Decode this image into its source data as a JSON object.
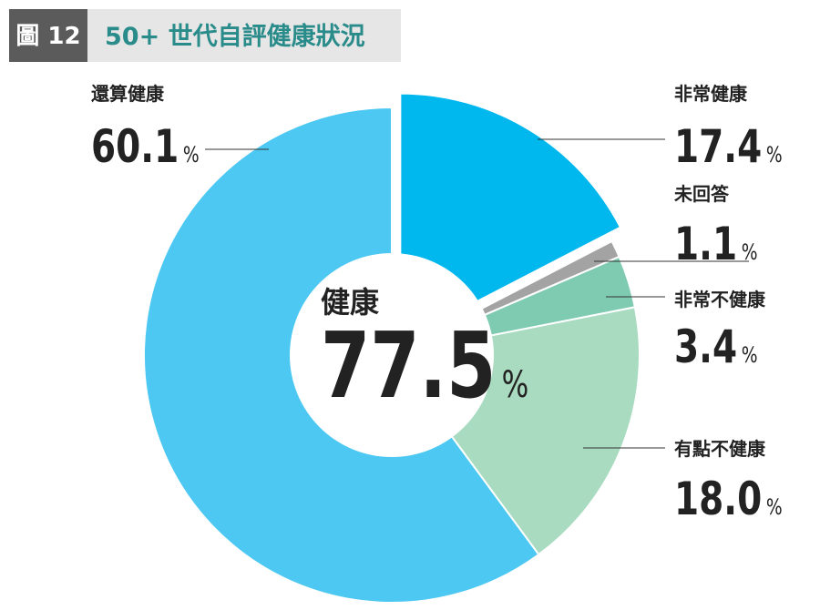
{
  "chart_data": {
    "type": "donut",
    "figure_label": "圖 12",
    "title": "50+ 世代自評健康狀況",
    "categories": [
      "非常健康",
      "未回答",
      "非常不健康",
      "有點不健康",
      "還算健康"
    ],
    "values": [
      17.4,
      1.1,
      3.4,
      18.0,
      60.1
    ],
    "value_labels": [
      "17.4",
      "1.1",
      "3.4",
      "18.0",
      "60.1"
    ],
    "unit": "%",
    "colors": [
      "#00b7ee",
      "#a3a3a3",
      "#7ecbb1",
      "#a9dbc1",
      "#4cc8f2"
    ],
    "exploded": [
      true,
      false,
      false,
      false,
      false
    ],
    "center_label": "健康",
    "center_value": 77.5
  }
}
